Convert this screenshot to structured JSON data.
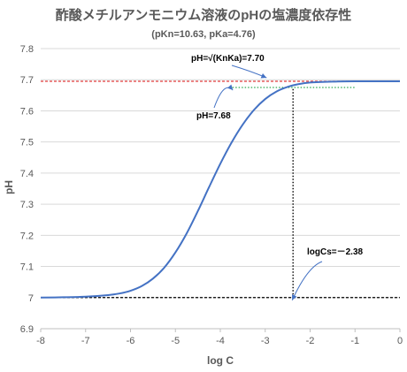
{
  "chart_data": {
    "type": "line",
    "title": "酢酸メチルアンモニウム溶液のpHの塩濃度依存性",
    "subtitle": "(pKn=10.63, pKa=4.76)",
    "xlabel": "log C",
    "ylabel": "pH",
    "xlim": [
      -8,
      0
    ],
    "ylim": [
      6.9,
      7.8
    ],
    "x_ticks": [
      -8,
      -7,
      -6,
      -5,
      -4,
      -3,
      -2,
      -1,
      0
    ],
    "x_tick_labels": [
      "-8",
      "-7",
      "-6",
      "-5",
      "-4",
      "-3",
      "-2",
      "-1",
      "0"
    ],
    "y_ticks": [
      6.9,
      7.0,
      7.1,
      7.2,
      7.3,
      7.4,
      7.5,
      7.6,
      7.7,
      7.8
    ],
    "y_tick_labels": [
      "6.9",
      "7",
      "7.1",
      "7.2",
      "7.3",
      "7.4",
      "7.5",
      "7.6",
      "7.7",
      "7.8"
    ],
    "grid": "horizontal",
    "series": [
      {
        "color": "#4472c4",
        "x": [
          -8.0,
          -7.5,
          -7.0,
          -6.5,
          -6.25,
          -6.0,
          -5.75,
          -5.5,
          -5.25,
          -5.0,
          -4.75,
          -4.5,
          -4.25,
          -4.0,
          -3.75,
          -3.5,
          -3.25,
          -3.0,
          -2.75,
          -2.5,
          -2.25,
          -2.0,
          -1.5,
          -1.0,
          -0.5,
          0.0
        ],
        "y": [
          7.0,
          7.001,
          7.003,
          7.008,
          7.013,
          7.022,
          7.037,
          7.061,
          7.096,
          7.145,
          7.206,
          7.278,
          7.355,
          7.43,
          7.498,
          7.556,
          7.603,
          7.638,
          7.662,
          7.677,
          7.686,
          7.691,
          7.694,
          7.695,
          7.695,
          7.695
        ]
      }
    ],
    "reference_lines": [
      {
        "kind": "horizontal",
        "y": 7.695,
        "x_from": -8,
        "x_to": 0,
        "color": "#e03c3c",
        "style": "dashed"
      },
      {
        "kind": "horizontal",
        "y": 7.675,
        "x_from": -3.8,
        "x_to": -1.0,
        "color": "#2ea84f",
        "style": "dotted"
      },
      {
        "kind": "horizontal",
        "y": 7.0,
        "x_from": -8,
        "x_to": 0,
        "color": "#000000",
        "style": "dashed"
      },
      {
        "kind": "vertical",
        "x": -2.38,
        "y_from": 7.0,
        "y_to": 7.675,
        "color": "#000000",
        "style": "dotted"
      }
    ],
    "annotations": [
      {
        "text": "pH=√(KnKa)=7.70",
        "target_x": -2.95,
        "target_y": 7.695
      },
      {
        "text": "pH=7.68",
        "target_x": -3.7,
        "target_y": 7.675
      },
      {
        "text": "logCs=－2.38",
        "target_x": -2.38,
        "target_y": 7.0
      }
    ]
  }
}
